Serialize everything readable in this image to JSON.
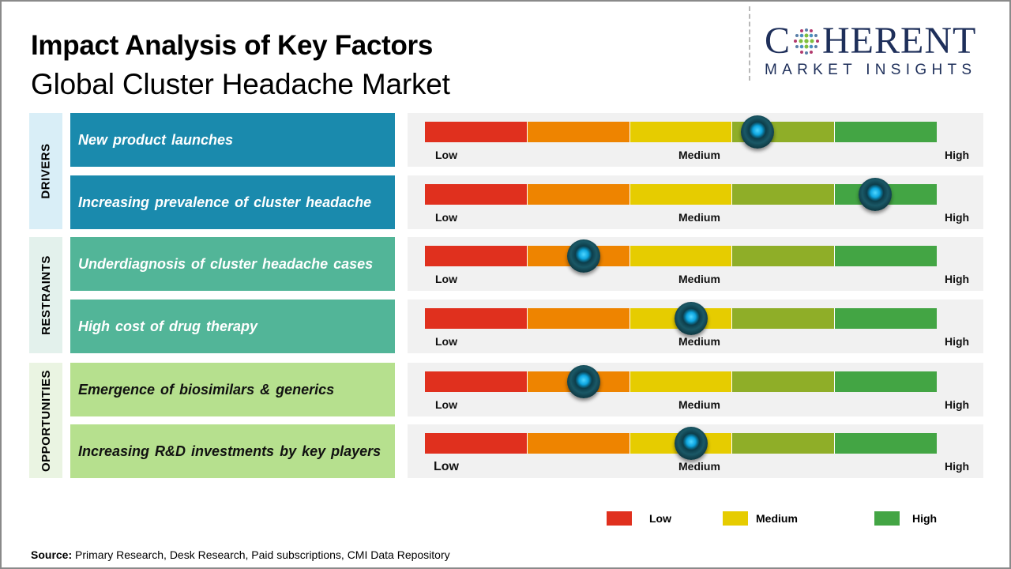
{
  "header": {
    "title": "Impact Analysis of Key Factors",
    "subtitle": "Global Cluster Headache Market"
  },
  "logo": {
    "brand_first": "C",
    "brand_rest": "HERENT",
    "tagline": "MARKET INSIGHTS",
    "icon": "globe-dots-icon"
  },
  "colors": {
    "drivers": "#1a8aad",
    "drivers_side": "#d9eef7",
    "restraints": "#52b598",
    "restraints_side": "#e3f1ec",
    "opportunities": "#b6e08e",
    "opportunities_side": "#eaf4e2",
    "scale": [
      "#e0301e",
      "#ee8400",
      "#e6cc00",
      "#8fae28",
      "#43a544"
    ]
  },
  "scale_labels": {
    "low": "Low",
    "medium": "Medium",
    "high": "High"
  },
  "categories": [
    {
      "label": "DRIVERS",
      "key": "drivers"
    },
    {
      "label": "RESTRAINTS",
      "key": "restraints"
    },
    {
      "label": "OPPORTUNITIES",
      "key": "opportunities"
    }
  ],
  "factors": [
    {
      "category": "drivers",
      "text": "New product launches",
      "position_pct": 65
    },
    {
      "category": "drivers",
      "text": "Increasing prevalence of cluster headache",
      "position_pct": 88
    },
    {
      "category": "restraints",
      "text": "Underdiagnosis of cluster headache cases",
      "position_pct": 31
    },
    {
      "category": "restraints",
      "text": "High cost of drug therapy",
      "position_pct": 52
    },
    {
      "category": "opportunities",
      "text": "Emergence of biosimilars & generics",
      "position_pct": 31
    },
    {
      "category": "opportunities",
      "text": "Increasing R&D investments by key players",
      "position_pct": 52
    }
  ],
  "legend": [
    {
      "label": "Low",
      "color": "#e0301e"
    },
    {
      "label": "Medium",
      "color": "#e6cc00"
    },
    {
      "label": "High",
      "color": "#43a544"
    }
  ],
  "source": {
    "prefix": "Source:",
    "text": " Primary Research, Desk Research, Paid subscriptions, CMI Data Repository"
  },
  "chart_data": {
    "type": "table",
    "title": "Impact Analysis of Key Factors",
    "subtitle": "Global Cluster Headache Market",
    "scale": [
      "Low",
      "Medium",
      "High"
    ],
    "scale_segments": 5,
    "rows": [
      {
        "category": "Drivers",
        "factor": "New product launches",
        "impact": "Medium-High",
        "position_0_to_1": 0.65
      },
      {
        "category": "Drivers",
        "factor": "Increasing prevalence of cluster headache",
        "impact": "High",
        "position_0_to_1": 0.88
      },
      {
        "category": "Restraints",
        "factor": "Underdiagnosis of cluster headache cases",
        "impact": "Low-Medium",
        "position_0_to_1": 0.31
      },
      {
        "category": "Restraints",
        "factor": "High cost of drug therapy",
        "impact": "Medium",
        "position_0_to_1": 0.52
      },
      {
        "category": "Opportunities",
        "factor": "Emergence of biosimilars & generics",
        "impact": "Low-Medium",
        "position_0_to_1": 0.31
      },
      {
        "category": "Opportunities",
        "factor": "Increasing R&D investments by key players",
        "impact": "Medium",
        "position_0_to_1": 0.52
      }
    ],
    "legend": [
      "Low",
      "Medium",
      "High"
    ]
  }
}
